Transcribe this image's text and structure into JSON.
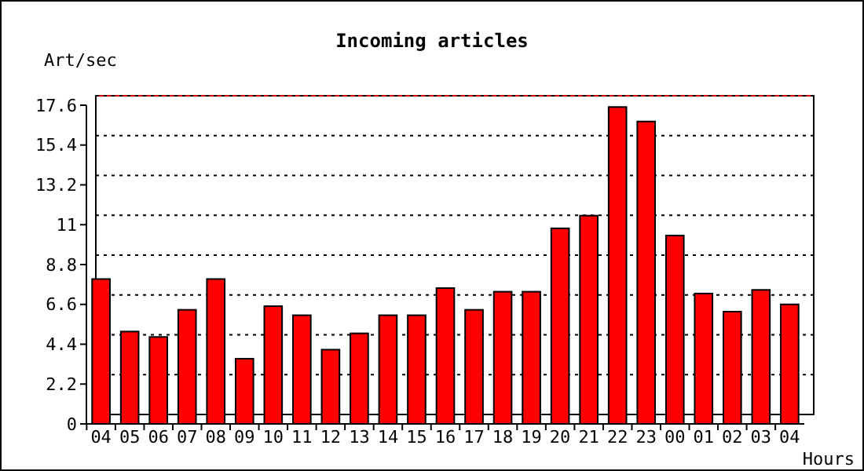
{
  "chart_data": {
    "type": "bar",
    "title": "Incoming articles",
    "ylabel": "Art/sec",
    "xlabel": "Hours",
    "categories": [
      "04",
      "05",
      "06",
      "07",
      "08",
      "09",
      "10",
      "11",
      "12",
      "13",
      "14",
      "15",
      "16",
      "17",
      "18",
      "19",
      "20",
      "21",
      "22",
      "23",
      "00",
      "01",
      "02",
      "03",
      "04"
    ],
    "values": [
      8.0,
      5.1,
      4.8,
      6.3,
      8.0,
      3.6,
      6.5,
      6.0,
      4.1,
      5.0,
      6.0,
      6.0,
      7.5,
      6.3,
      7.3,
      7.3,
      10.8,
      11.5,
      17.5,
      16.7,
      10.4,
      7.2,
      6.2,
      7.4,
      6.6
    ],
    "color": "#ff0000",
    "ylim": [
      0,
      17.6
    ],
    "yticks": [
      0,
      2.2,
      4.4,
      6.6,
      8.8,
      11,
      13.2,
      15.4,
      17.6
    ],
    "grid": "y"
  }
}
